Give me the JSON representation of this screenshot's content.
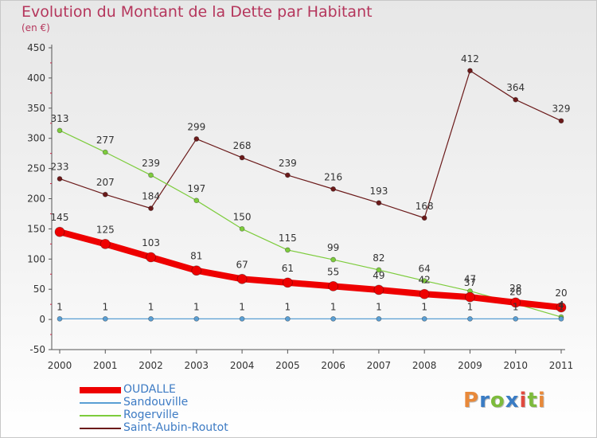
{
  "header": {
    "title": "Evolution du Montant de la Dette par Habitant",
    "subtitle": "(en €)"
  },
  "logo": {
    "text": "Proxiti",
    "colors": [
      "#e8893a",
      "#3a7cc4",
      "#7dbb3c",
      "#3a7cc4",
      "#e04a3f",
      "#7dbb3c",
      "#e8893a"
    ]
  },
  "chart_data": {
    "type": "line",
    "title": "Evolution du Montant de la Dette par Habitant",
    "subtitle": "(en €)",
    "xlabel": "",
    "ylabel": "",
    "x": [
      "2000",
      "2001",
      "2002",
      "2003",
      "2004",
      "2005",
      "2006",
      "2007",
      "2008",
      "2009",
      "2010",
      "2011"
    ],
    "ylim": [
      -50,
      450
    ],
    "yticks": [
      -50,
      0,
      50,
      100,
      150,
      200,
      250,
      300,
      350,
      400,
      450
    ],
    "grid": false,
    "legend_position": "bottom-left",
    "series": [
      {
        "name": "OUDALLE",
        "color": "#ee0000",
        "values": [
          145,
          125,
          103,
          81,
          67,
          61,
          55,
          49,
          42,
          37,
          28,
          20
        ]
      },
      {
        "name": "Sandouville",
        "color": "#5a9fd4",
        "values": [
          1,
          1,
          1,
          1,
          1,
          1,
          1,
          1,
          1,
          1,
          1,
          1
        ]
      },
      {
        "name": "Rogerville",
        "color": "#7dcc3c",
        "values": [
          313,
          277,
          239,
          197,
          150,
          115,
          99,
          82,
          64,
          47,
          26,
          4
        ]
      },
      {
        "name": "Saint-Aubin-Routot",
        "color": "#6b1a1a",
        "values": [
          233,
          207,
          184,
          299,
          268,
          239,
          216,
          193,
          168,
          412,
          364,
          329
        ]
      }
    ]
  }
}
